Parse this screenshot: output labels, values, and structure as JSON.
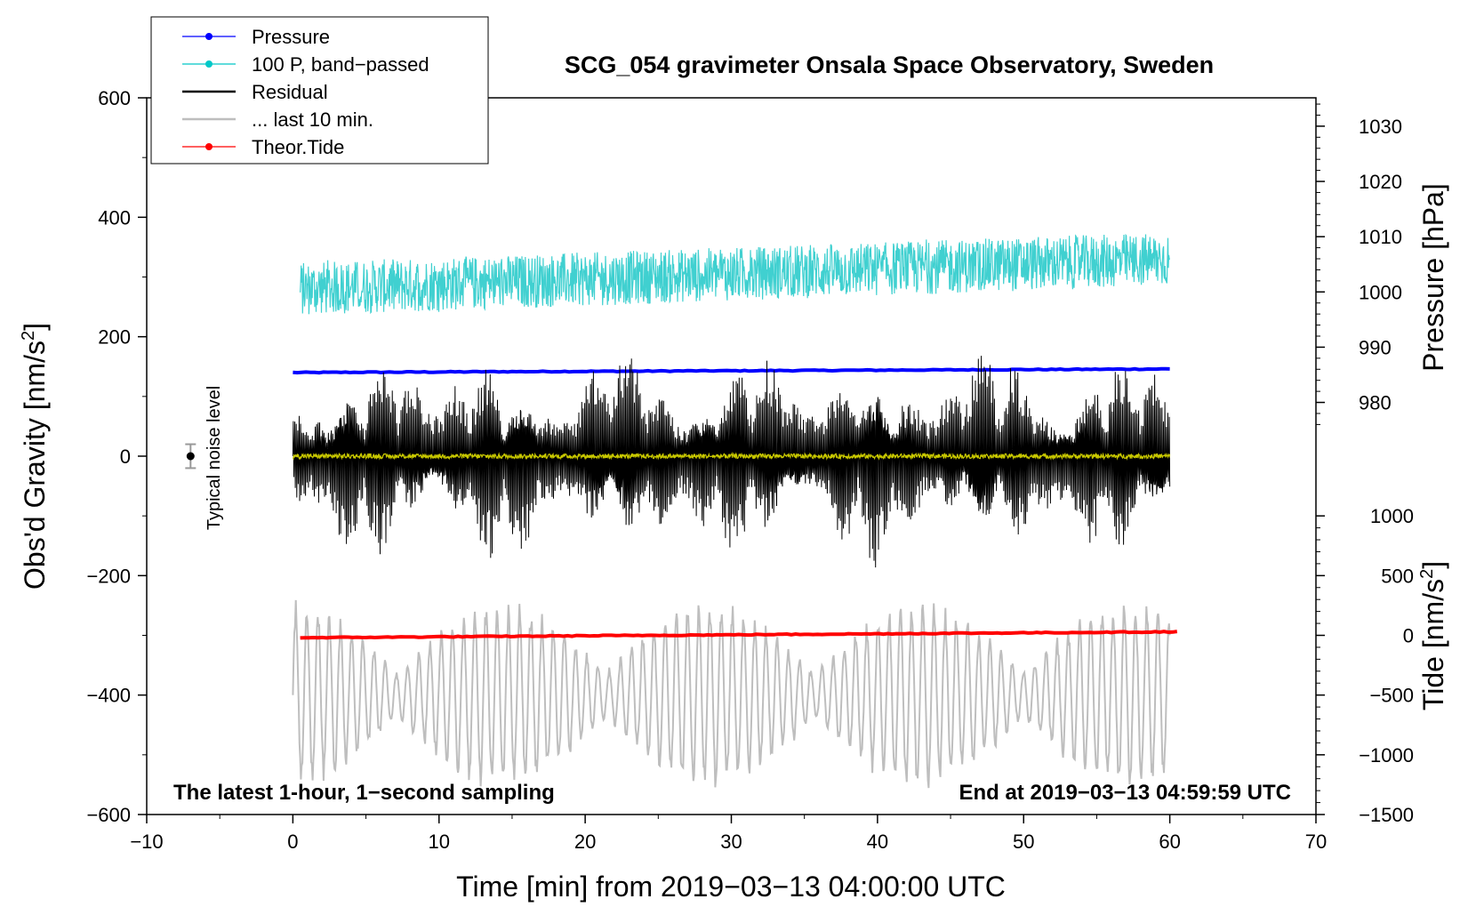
{
  "chart_data": {
    "type": "line",
    "title": "SCG_054 gravimeter Onsala Space Observatory, Sweden",
    "xlabel": "Time [min] from 2019−03−13 04:00:00 UTC",
    "ylabel_left": "Obs'd Gravity [nm/s",
    "ylabel_left_sup": "2",
    "ylabel_left_end": "]",
    "ylabel_right_pressure": "Pressure [hPa]",
    "ylabel_right_tide": "Tide [nm/s",
    "ylabel_right_tide_sup": "2",
    "ylabel_right_tide_end": "]",
    "xlim": [
      -10,
      70
    ],
    "ylim": [
      -600,
      600
    ],
    "x_ticks": [
      -10,
      0,
      10,
      20,
      30,
      40,
      50,
      60,
      70
    ],
    "x_tick_labels": [
      "−10",
      "0",
      "10",
      "20",
      "30",
      "40",
      "50",
      "60",
      "70"
    ],
    "y_ticks": [
      -600,
      -400,
      -200,
      0,
      200,
      400,
      600
    ],
    "y_tick_labels": [
      "−600",
      "−400",
      "−200",
      "0",
      "200",
      "400",
      "600"
    ],
    "pressure_axis": {
      "ticks": [
        980,
        990,
        1000,
        1010,
        1020,
        1030
      ],
      "tick_labels": [
        "980",
        "990",
        "1000",
        "1010",
        "1020",
        "1030"
      ],
      "map_gravity_at_980": 90,
      "map_gravity_per_hpa": 9.25
    },
    "tide_axis": {
      "ticks": [
        -1500,
        -1000,
        -500,
        0,
        500,
        1000
      ],
      "tick_labels": [
        "−1500",
        "−1000",
        "−500",
        "0",
        "500",
        "1000"
      ],
      "map_gravity_at_0": -300,
      "map_gravity_per_unit": 0.2
    },
    "annotation_left": "The latest 1-hour, 1−second sampling",
    "annotation_right": "End at 2019−03−13 04:59:59 UTC",
    "noise_label": "Typical noise level",
    "noise_marker": {
      "x": -7,
      "y": 0,
      "err": 20
    },
    "legend": [
      {
        "label": "Pressure",
        "color": "#0000ff",
        "marker": true
      },
      {
        "label": "100 P, band−passed",
        "color": "#00c8c8",
        "marker": true
      },
      {
        "label": "Residual",
        "color": "#000000",
        "marker": false
      },
      {
        "label": "... last 10 min.",
        "color": "#bebebe",
        "marker": false
      },
      {
        "label": "Theor.Tide",
        "color": "#ff0000",
        "marker": true
      }
    ],
    "series": [
      {
        "name": "Pressure",
        "color": "#0000ff",
        "x_start": 0,
        "x_end": 60,
        "y_start": 140,
        "y_end": 146,
        "kind": "trend"
      },
      {
        "name": "100 P, band−passed",
        "color": "#40d0d0",
        "x_start": 0.5,
        "x_end": 60,
        "baseline_start": 280,
        "baseline_end": 330,
        "amplitude": 45,
        "kind": "noise"
      },
      {
        "name": "Residual",
        "color": "#000000",
        "x_start": 0,
        "x_end": 60,
        "baseline": 0,
        "amplitude": 190,
        "kind": "burst"
      },
      {
        "name": "Residual mean",
        "color": "#c8c800",
        "x_start": 0,
        "x_end": 60,
        "baseline": 0,
        "amplitude": 4,
        "kind": "noise"
      },
      {
        "name": "... last 10 min.",
        "color": "#bebebe",
        "x_start": 0,
        "x_end": 60,
        "baseline": -400,
        "amplitude": 160,
        "kind": "wave"
      },
      {
        "name": "Theor.Tide",
        "color": "#ff0000",
        "x_start": 0.5,
        "x_end": 60.5,
        "y_start": -304,
        "y_end": -294,
        "kind": "trend"
      }
    ]
  }
}
